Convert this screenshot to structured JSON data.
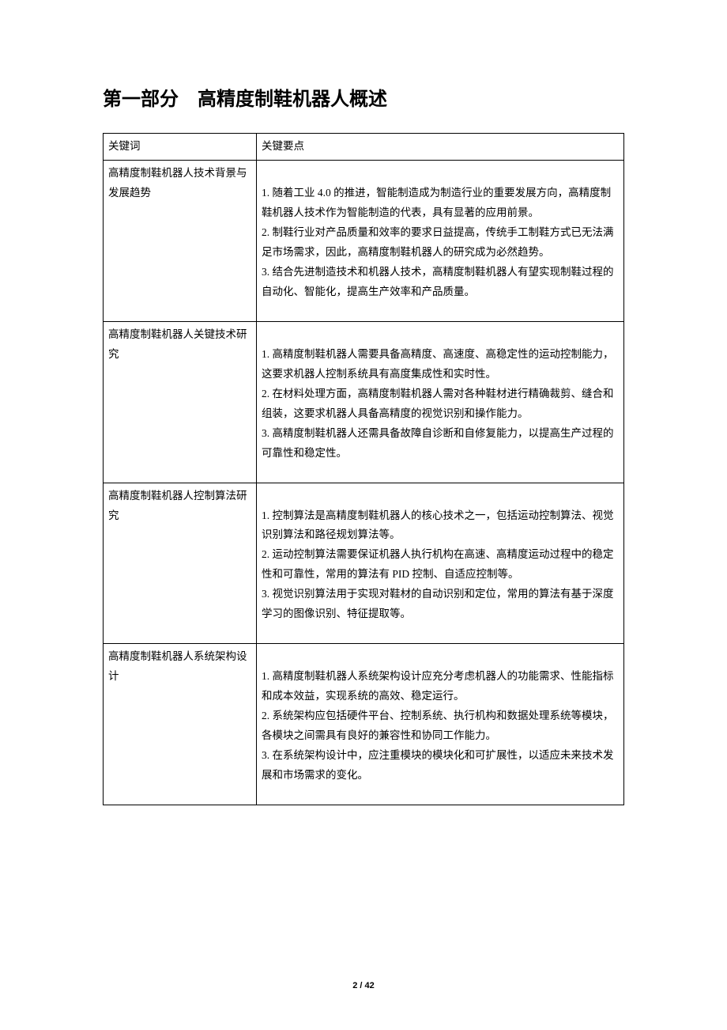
{
  "heading": "第一部分　高精度制鞋机器人概述",
  "table": {
    "header": {
      "col1": "关键词",
      "col2": "关键要点"
    },
    "rows": [
      {
        "keyword": "高精度制鞋机器人技术背景与发展趋势",
        "points": "\n1. 随着工业 4.0 的推进，智能制造成为制造行业的重要发展方向，高精度制鞋机器人技术作为智能制造的代表，具有显著的应用前景。\n2. 制鞋行业对产品质量和效率的要求日益提高，传统手工制鞋方式已无法满足市场需求，因此，高精度制鞋机器人的研究成为必然趋势。\n3. 结合先进制造技术和机器人技术，高精度制鞋机器人有望实现制鞋过程的自动化、智能化，提高生产效率和产品质量。"
      },
      {
        "keyword": "高精度制鞋机器人关键技术研究",
        "points": "\n1. 高精度制鞋机器人需要具备高精度、高速度、高稳定性的运动控制能力，这要求机器人控制系统具有高度集成性和实时性。\n2. 在材料处理方面，高精度制鞋机器人需对各种鞋材进行精确裁剪、缝合和组装，这要求机器人具备高精度的视觉识别和操作能力。\n3. 高精度制鞋机器人还需具备故障自诊断和自修复能力，以提高生产过程的可靠性和稳定性。"
      },
      {
        "keyword": "高精度制鞋机器人控制算法研究",
        "points": "\n1. 控制算法是高精度制鞋机器人的核心技术之一，包括运动控制算法、视觉识别算法和路径规划算法等。\n2. 运动控制算法需要保证机器人执行机构在高速、高精度运动过程中的稳定性和可靠性，常用的算法有 PID 控制、自适应控制等。\n3. 视觉识别算法用于实现对鞋材的自动识别和定位，常用的算法有基于深度学习的图像识别、特征提取等。"
      },
      {
        "keyword": "高精度制鞋机器人系统架构设计",
        "points": "\n1. 高精度制鞋机器人系统架构设计应充分考虑机器人的功能需求、性能指标和成本效益，实现系统的高效、稳定运行。\n2. 系统架构应包括硬件平台、控制系统、执行机构和数据处理系统等模块，各模块之间需具有良好的兼容性和协同工作能力。\n3. 在系统架构设计中，应注重模块的模块化和可扩展性，以适应未来技术发展和市场需求的变化。"
      }
    ]
  },
  "footer": "2 / 42"
}
